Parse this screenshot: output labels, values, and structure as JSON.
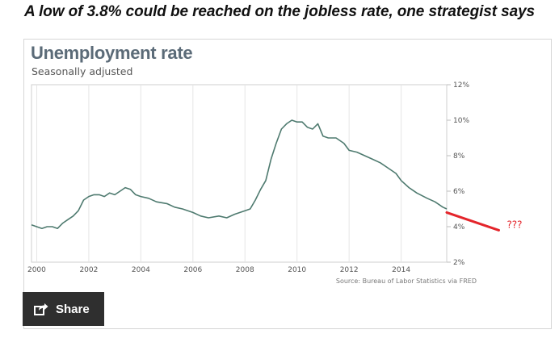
{
  "headline": "A low of 3.8% could be reached on the jobless rate, one strategist says",
  "share": {
    "label": "Share",
    "icon": "share-icon"
  },
  "colors": {
    "line": "#4e7a6f",
    "projection": "#e4252b",
    "grid": "#e5e5e5",
    "axis_text": "#555555",
    "title": "#5b6b78"
  },
  "chart_data": {
    "type": "line",
    "title": "Unemployment rate",
    "subtitle": "Seasonally adjusted",
    "source": "Source: Bureau of Labor Statistics via FRED",
    "xlim": [
      1999.8,
      2015.75
    ],
    "ylim": [
      2,
      12
    ],
    "x_ticks": [
      2000,
      2002,
      2004,
      2006,
      2008,
      2010,
      2012,
      2014
    ],
    "x_tick_labels": [
      "2000",
      "2002",
      "2004",
      "2006",
      "2008",
      "2010",
      "2012",
      "2014"
    ],
    "y_ticks": [
      2,
      4,
      6,
      8,
      10,
      12
    ],
    "y_tick_labels": [
      "2%",
      "4%",
      "6%",
      "8%",
      "10%",
      "12%"
    ],
    "y_axis_position": "right",
    "grid": "vertical",
    "series": [
      {
        "x": [
          1999.8,
          2000.0,
          2000.2,
          2000.4,
          2000.6,
          2000.8,
          2001.0,
          2001.2,
          2001.4,
          2001.6,
          2001.8,
          2002.0,
          2002.2,
          2002.4,
          2002.6,
          2002.8,
          2003.0,
          2003.2,
          2003.4,
          2003.6,
          2003.8,
          2004.0,
          2004.3,
          2004.6,
          2005.0,
          2005.3,
          2005.6,
          2006.0,
          2006.3,
          2006.6,
          2007.0,
          2007.3,
          2007.6,
          2008.0,
          2008.2,
          2008.4,
          2008.6,
          2008.8,
          2009.0,
          2009.2,
          2009.4,
          2009.6,
          2009.8,
          2010.0,
          2010.2,
          2010.4,
          2010.6,
          2010.8,
          2011.0,
          2011.2,
          2011.5,
          2011.8,
          2012.0,
          2012.3,
          2012.6,
          2012.9,
          2013.2,
          2013.5,
          2013.8,
          2014.0,
          2014.3,
          2014.6,
          2015.0,
          2015.3,
          2015.6,
          2015.75
        ],
        "y": [
          4.1,
          4.0,
          3.9,
          4.0,
          4.0,
          3.9,
          4.2,
          4.4,
          4.6,
          4.9,
          5.5,
          5.7,
          5.8,
          5.8,
          5.7,
          5.9,
          5.8,
          6.0,
          6.2,
          6.1,
          5.8,
          5.7,
          5.6,
          5.4,
          5.3,
          5.1,
          5.0,
          4.8,
          4.6,
          4.5,
          4.6,
          4.5,
          4.7,
          4.9,
          5.0,
          5.5,
          6.1,
          6.6,
          7.8,
          8.7,
          9.5,
          9.8,
          10.0,
          9.9,
          9.9,
          9.6,
          9.5,
          9.8,
          9.1,
          9.0,
          9.0,
          8.7,
          8.3,
          8.2,
          8.0,
          7.8,
          7.6,
          7.3,
          7.0,
          6.6,
          6.2,
          5.9,
          5.6,
          5.4,
          5.1,
          5.0
        ]
      },
      {
        "x": [
          2015.75,
          2017.75
        ],
        "y": [
          4.8,
          3.8
        ]
      }
    ],
    "annotations": [
      "???"
    ]
  }
}
